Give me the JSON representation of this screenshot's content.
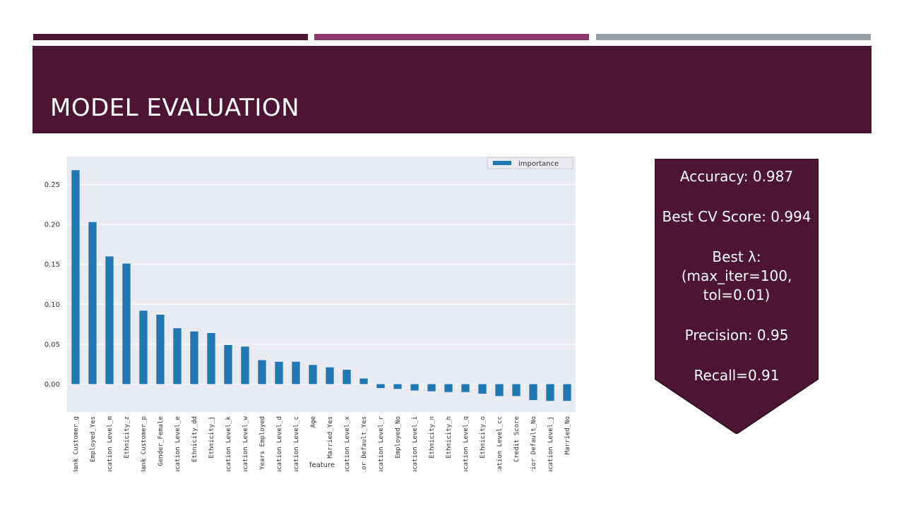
{
  "slide": {
    "title": "MODEL EVALUATION",
    "colors": {
      "primary": "#4d1533",
      "secondary": "#8d3669",
      "tertiary": "#969ea3",
      "bar": "#1f77b4",
      "plot_bg": "#eaeaf2"
    }
  },
  "metrics": {
    "accuracy": "Accuracy: 0.987",
    "best_cv": "Best CV Score: 0.994",
    "best_lambda_label": "Best λ:",
    "best_lambda_line1": "(max_iter=100,",
    "best_lambda_line2": "tol=0.01)",
    "precision": "Precision: 0.95",
    "recall": "Recall=0.91"
  },
  "chart_data": {
    "type": "bar",
    "title": "",
    "xlabel": "feature",
    "ylabel": "",
    "ylim": [
      -0.035,
      0.285
    ],
    "yticks": [
      "0.00",
      "0.05",
      "0.10",
      "0.15",
      "0.20",
      "0.25"
    ],
    "grid": true,
    "legend_position": "top-right",
    "series": [
      {
        "name": "importance",
        "values": [
          0.268,
          0.203,
          0.16,
          0.151,
          0.092,
          0.087,
          0.07,
          0.066,
          0.064,
          0.049,
          0.047,
          0.03,
          0.028,
          0.028,
          0.024,
          0.021,
          0.018,
          0.007,
          -0.005,
          -0.006,
          -0.008,
          -0.009,
          -0.01,
          -0.01,
          -0.012,
          -0.015,
          -0.015,
          -0.02,
          -0.021,
          -0.021
        ]
      }
    ],
    "categories": [
      "Bank Customer_g",
      "Employed_Yes",
      "Education Level_m",
      "Ethnicity_z",
      "Bank Customer_p",
      "Gender_Female",
      "Education Level_e",
      "Ethnicity_dd",
      "Ethnicity_j",
      "Education Level_k",
      "Education Level_w",
      "Years Employed",
      "Education Level_d",
      "Education Level_c",
      "Age",
      "Married_Yes",
      "Education Level_x",
      "Prior Default_Yes",
      "Education Level_r",
      "Employed_No",
      "Education Level_i",
      "Ethnicity_n",
      "Ethnicity_h",
      "Education Level_q",
      "Ethnicity_o",
      "Education Level_cc",
      "Credit Score",
      "Prior Default_No",
      "Education Level_j",
      "Married_No"
    ]
  }
}
